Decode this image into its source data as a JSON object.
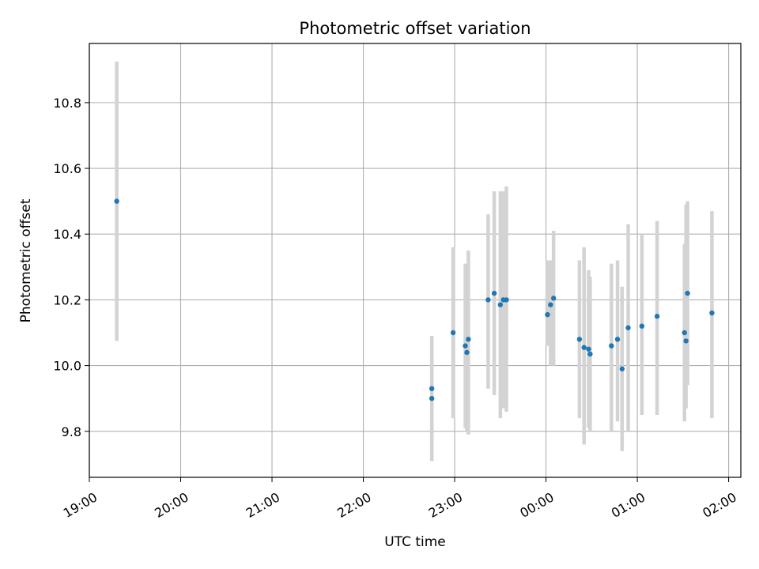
{
  "chart_data": {
    "type": "scatter",
    "title": "Photometric offset variation",
    "xlabel": "UTC time",
    "ylabel": "Photometric offset",
    "x_ticks": [
      "19:00",
      "20:00",
      "21:00",
      "22:00",
      "23:00",
      "00:00",
      "01:00",
      "02:00"
    ],
    "y_ticks": [
      "9.8",
      "10.0",
      "10.2",
      "10.4",
      "10.6",
      "10.8"
    ],
    "xlim": [
      "19:00",
      "02:08"
    ],
    "ylim": [
      9.66,
      10.98
    ],
    "grid": true,
    "colors": {
      "point": "#1f77b4",
      "errorbar": "#d3d3d3",
      "grid": "#b0b0b0"
    },
    "points": [
      {
        "t": "19:18",
        "y": 10.5,
        "lo": 10.075,
        "hi": 10.925
      },
      {
        "t": "22:45",
        "y": 9.93,
        "lo": 9.71,
        "hi": 10.09
      },
      {
        "t": "22:45",
        "y": 9.9,
        "lo": 9.71,
        "hi": 10.09
      },
      {
        "t": "22:59",
        "y": 10.1,
        "lo": 9.84,
        "hi": 10.36
      },
      {
        "t": "23:07",
        "y": 10.06,
        "lo": 9.81,
        "hi": 10.31
      },
      {
        "t": "23:08",
        "y": 10.04,
        "lo": 9.8,
        "hi": 10.28
      },
      {
        "t": "23:09",
        "y": 10.08,
        "lo": 9.79,
        "hi": 10.35
      },
      {
        "t": "23:22",
        "y": 10.2,
        "lo": 9.93,
        "hi": 10.46
      },
      {
        "t": "23:26",
        "y": 10.22,
        "lo": 9.91,
        "hi": 10.53
      },
      {
        "t": "23:30",
        "y": 10.185,
        "lo": 9.84,
        "hi": 10.53
      },
      {
        "t": "23:32",
        "y": 10.2,
        "lo": 9.87,
        "hi": 10.53
      },
      {
        "t": "23:34",
        "y": 10.2,
        "lo": 9.86,
        "hi": 10.545
      },
      {
        "t": "00:01",
        "y": 10.155,
        "lo": 10.06,
        "hi": 10.32
      },
      {
        "t": "00:03",
        "y": 10.185,
        "lo": 10.0,
        "hi": 10.32
      },
      {
        "t": "00:05",
        "y": 10.205,
        "lo": 10.0,
        "hi": 10.41
      },
      {
        "t": "00:22",
        "y": 10.08,
        "lo": 9.84,
        "hi": 10.32
      },
      {
        "t": "00:25",
        "y": 10.055,
        "lo": 9.76,
        "hi": 10.36
      },
      {
        "t": "00:28",
        "y": 10.05,
        "lo": 9.81,
        "hi": 10.29
      },
      {
        "t": "00:29",
        "y": 10.035,
        "lo": 9.8,
        "hi": 10.27
      },
      {
        "t": "00:43",
        "y": 10.06,
        "lo": 9.8,
        "hi": 10.31
      },
      {
        "t": "00:47",
        "y": 10.08,
        "lo": 9.83,
        "hi": 10.32
      },
      {
        "t": "00:50",
        "y": 9.99,
        "lo": 9.74,
        "hi": 10.24
      },
      {
        "t": "00:54",
        "y": 10.115,
        "lo": 9.8,
        "hi": 10.43
      },
      {
        "t": "01:03",
        "y": 10.12,
        "lo": 9.85,
        "hi": 10.4
      },
      {
        "t": "01:13",
        "y": 10.15,
        "lo": 9.85,
        "hi": 10.44
      },
      {
        "t": "01:31",
        "y": 10.1,
        "lo": 9.83,
        "hi": 10.37
      },
      {
        "t": "01:32",
        "y": 10.075,
        "lo": 9.87,
        "hi": 10.49
      },
      {
        "t": "01:33",
        "y": 10.22,
        "lo": 9.94,
        "hi": 10.5
      },
      {
        "t": "01:49",
        "y": 10.16,
        "lo": 9.84,
        "hi": 10.47
      }
    ]
  }
}
